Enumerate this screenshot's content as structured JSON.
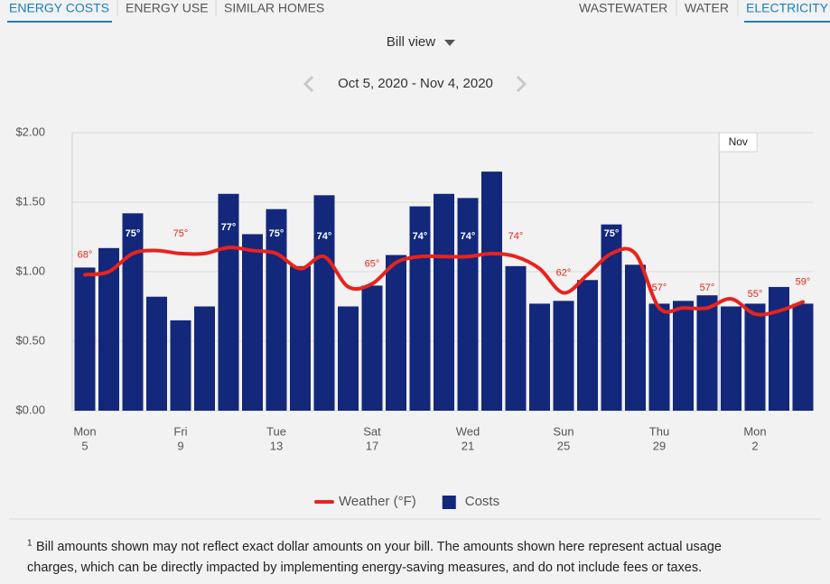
{
  "tabs_left": [
    {
      "label": "ENERGY COSTS",
      "active": true
    },
    {
      "label": "ENERGY USE",
      "active": false
    },
    {
      "label": "SIMILAR HOMES",
      "active": false
    }
  ],
  "tabs_right": [
    {
      "label": "WASTEWATER",
      "active": false
    },
    {
      "label": "WATER",
      "active": false
    },
    {
      "label": "ELECTRICITY",
      "active": true
    }
  ],
  "view_selector": "Bill view",
  "date_range": "Oct 5, 2020 - Nov 4, 2020",
  "chart_data": {
    "type": "bar",
    "categories": [
      "5",
      null,
      null,
      null,
      "9",
      null,
      null,
      null,
      "13",
      null,
      null,
      null,
      "17",
      null,
      null,
      null,
      "21",
      null,
      null,
      null,
      "25",
      null,
      null,
      null,
      "29",
      null,
      null,
      null,
      "2",
      null,
      null
    ],
    "weekdays": [
      "Mon",
      null,
      null,
      null,
      "Fri",
      null,
      null,
      null,
      "Tue",
      null,
      null,
      null,
      "Sat",
      null,
      null,
      null,
      "Wed",
      null,
      null,
      null,
      "Sun",
      null,
      null,
      null,
      "Thu",
      null,
      null,
      null,
      "Mon",
      null,
      null
    ],
    "month_marker": {
      "label": "Nov",
      "category_index": 27
    },
    "ylim": [
      0,
      2
    ],
    "yticks": [
      {
        "value": 0,
        "label": "$0.00"
      },
      {
        "value": 0.5,
        "label": "$0.50"
      },
      {
        "value": 1,
        "label": "$1.00"
      },
      {
        "value": 1.5,
        "label": "$1.50"
      },
      {
        "value": 2,
        "label": "$2.00"
      }
    ],
    "y2lim": [
      23,
      115
    ],
    "grid": true,
    "series": [
      {
        "name": "Weather (°F)",
        "type": "line",
        "axis": "y2",
        "color": "#e8231c",
        "values": [
          68,
          69,
          75,
          76,
          75,
          75,
          77,
          76,
          75,
          70,
          74,
          64,
          65,
          72,
          74,
          74,
          74,
          75,
          74,
          70,
          62,
          68,
          75,
          75,
          57,
          57,
          57,
          60,
          55,
          56,
          59
        ],
        "value_labels": [
          "68°",
          null,
          "75°",
          null,
          "75°",
          null,
          "77°",
          null,
          "75°",
          null,
          "74°",
          null,
          "65°",
          null,
          "74°",
          null,
          "74°",
          null,
          "74°",
          null,
          "62°",
          null,
          "75°",
          null,
          "57°",
          null,
          "57°",
          null,
          "55°",
          null,
          "59°"
        ]
      },
      {
        "name": "Costs",
        "type": "bar",
        "color": "#13287a",
        "values": [
          1.03,
          1.17,
          1.42,
          0.82,
          0.65,
          0.75,
          1.56,
          1.27,
          1.45,
          1.04,
          1.55,
          0.75,
          0.9,
          1.12,
          1.47,
          1.56,
          1.53,
          1.72,
          1.04,
          0.77,
          0.79,
          0.94,
          1.34,
          1.05,
          0.77,
          0.79,
          0.83,
          0.75,
          0.77,
          0.89,
          0.77
        ]
      }
    ]
  },
  "footnote": {
    "marker": "1",
    "lines": [
      "Bill amounts shown may not reflect exact dollar amounts on your bill. The amounts shown here represent actual usage",
      "charges, which can be directly impacted by implementing energy-saving measures, and do not include fees or taxes."
    ]
  }
}
